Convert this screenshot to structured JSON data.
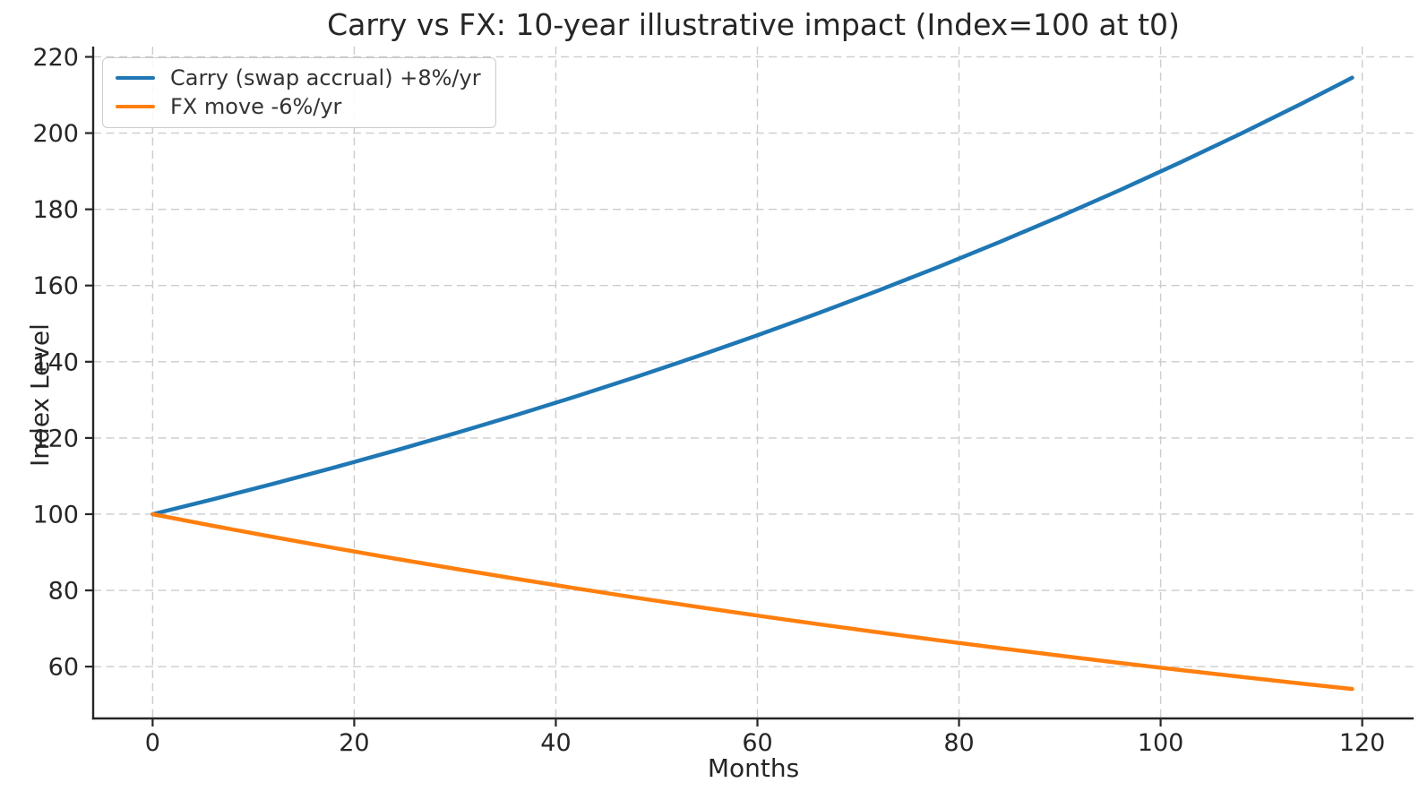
{
  "chart_data": {
    "type": "line",
    "title": "Carry vs FX: 10-year illustrative impact (Index=100 at t0)",
    "xlabel": "Months",
    "ylabel": "Index Level",
    "x_ticks": [
      0,
      20,
      40,
      60,
      80,
      100,
      120
    ],
    "y_ticks": [
      60,
      80,
      100,
      120,
      140,
      160,
      180,
      200,
      220
    ],
    "xlim": [
      -5.9,
      125.1
    ],
    "ylim": [
      46.4,
      222.7
    ],
    "grid": true,
    "grid_style": "dashed",
    "legend_position": "upper-left",
    "x": [
      0,
      6,
      12,
      18,
      24,
      30,
      36,
      42,
      48,
      54,
      60,
      66,
      72,
      78,
      84,
      90,
      96,
      102,
      108,
      114,
      119
    ],
    "series": [
      {
        "name": "Carry (swap accrual) +8%/yr",
        "color": "#1f77b4",
        "values": [
          100,
          103.92,
          108.0,
          112.24,
          116.64,
          121.22,
          125.97,
          130.91,
          136.05,
          141.39,
          146.93,
          152.7,
          158.69,
          164.91,
          171.38,
          178.11,
          185.09,
          192.35,
          199.9,
          207.74,
          214.51
        ]
      },
      {
        "name": "FX move -6%/yr",
        "color": "#ff7f0e",
        "values": [
          100,
          96.95,
          94.0,
          91.14,
          88.36,
          85.67,
          83.06,
          80.53,
          78.07,
          75.7,
          73.39,
          71.15,
          68.99,
          66.89,
          64.85,
          62.87,
          60.96,
          59.1,
          57.3,
          55.55,
          54.14
        ]
      }
    ]
  },
  "style": {
    "background": "#ffffff",
    "grid_color": "#cccccc",
    "spine_color": "#262626",
    "tick_color": "#262626",
    "text_color": "#262626",
    "legend_border_color": "#cccccc",
    "tick_label_size": 27
  }
}
